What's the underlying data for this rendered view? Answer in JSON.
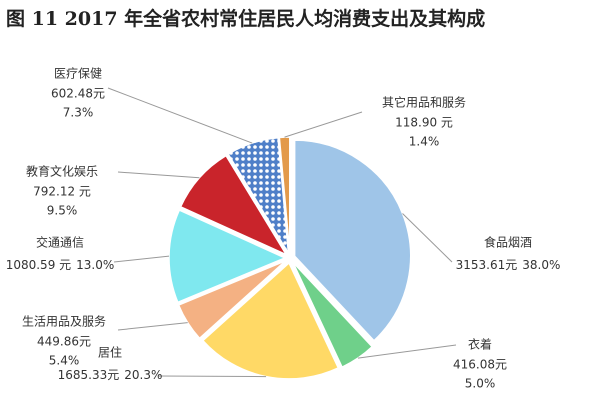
{
  "chart_data": {
    "type": "pie",
    "title": "图 11 2017 年全省农村常住居民人均消费支出及其构成",
    "categories": [
      "食品烟酒",
      "衣着",
      "居住",
      "生活用品及服务",
      "交通通信",
      "教育文化娱乐",
      "医疗保健",
      "其它用品和服务"
    ],
    "values": [
      3153.61,
      416.08,
      1685.33,
      449.86,
      1080.59,
      792.12,
      602.48,
      118.9
    ],
    "value_labels": [
      "3153.61元",
      "416.08元",
      "1685.33元",
      "449.86元",
      "1080.59 元",
      "792.12 元",
      "602.48元",
      "118.90 元"
    ],
    "percent_labels": [
      "38.0%",
      "5.0%",
      "20.3%",
      "5.4%",
      "13.0%",
      "9.5%",
      "7.3%",
      "1.4%"
    ],
    "colors": [
      "#9fc5e8",
      "#6fd08a",
      "#ffd966",
      "#f4b183",
      "#7fe8ef",
      "#c9242b",
      "#5b8fd1",
      "#e39a4a"
    ]
  }
}
